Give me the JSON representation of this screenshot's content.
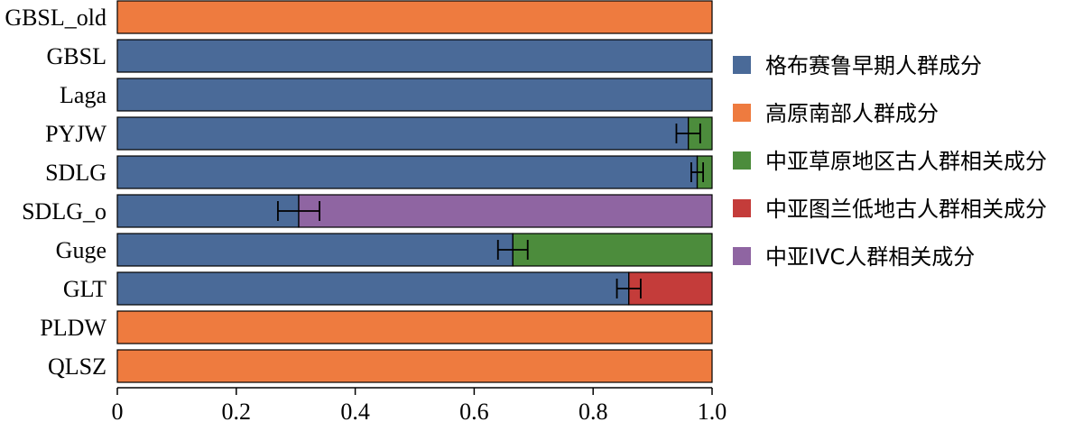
{
  "chart_data": {
    "type": "bar",
    "orientation": "horizontal",
    "stacked": true,
    "categories": [
      "GBSL_old",
      "GBSL",
      "Laga",
      "PYJW",
      "SDLG",
      "SDLG_o",
      "Guge",
      "GLT",
      "PLDW",
      "QLSZ"
    ],
    "series": [
      {
        "name": "格布赛鲁早期人群成分",
        "color": "#4a6a98",
        "values": [
          0,
          1,
          1,
          0.96,
          0.975,
          0.305,
          0.665,
          0.86,
          0,
          0
        ]
      },
      {
        "name": "高原南部人群成分",
        "color": "#ee7b3f",
        "values": [
          1,
          0,
          0,
          0,
          0,
          0,
          0,
          0,
          1,
          1
        ]
      },
      {
        "name": "中亚草原地区古人群相关成分",
        "color": "#4c8c3c",
        "values": [
          0,
          0,
          0,
          0.04,
          0.025,
          0,
          0.335,
          0,
          0,
          0
        ]
      },
      {
        "name": "中亚图兰低地古人群相关成分",
        "color": "#c43c3a",
        "values": [
          0,
          0,
          0,
          0,
          0,
          0,
          0,
          0.14,
          0,
          0
        ]
      },
      {
        "name": "中亚IVC人群相关成分",
        "color": "#8f65a2",
        "values": [
          0,
          0,
          0,
          0,
          0,
          0.695,
          0,
          0,
          0,
          0
        ]
      }
    ],
    "error_bars": [
      {
        "category": "PYJW",
        "center": 0.96,
        "low": 0.94,
        "high": 0.98
      },
      {
        "category": "SDLG",
        "center": 0.975,
        "low": 0.965,
        "high": 0.985
      },
      {
        "category": "SDLG_o",
        "center": 0.305,
        "low": 0.27,
        "high": 0.34
      },
      {
        "category": "Guge",
        "center": 0.665,
        "low": 0.64,
        "high": 0.69
      },
      {
        "category": "GLT",
        "center": 0.86,
        "low": 0.84,
        "high": 0.88
      }
    ],
    "xlim": [
      0,
      1
    ],
    "xticks": [
      0,
      0.2,
      0.4,
      0.6,
      0.8,
      1.0
    ],
    "xtick_labels": [
      "0",
      "0.2",
      "0.4",
      "0.6",
      "0.8",
      "1.0"
    ],
    "xlabel": "",
    "ylabel": "",
    "title": "",
    "grid": false,
    "legend_position": "right"
  }
}
